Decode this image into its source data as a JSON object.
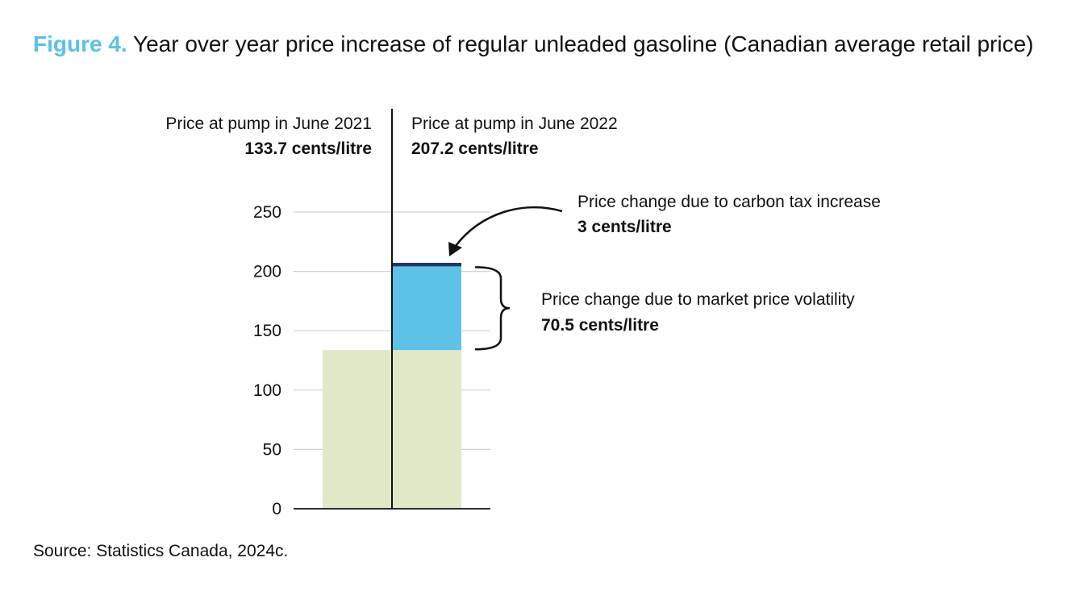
{
  "figure": {
    "label": "Figure 4.",
    "title": "Year over year price increase of regular unleaded gasoline (Canadian average retail price)",
    "source": "Source: Statistics Canada, 2024c."
  },
  "colors": {
    "label_accent": "#5bc0e8",
    "base_fill": "#dfe9c8",
    "market_fill": "#5ec1e8",
    "carbon_fill": "#1f3864",
    "gridline": "#d0d0d0",
    "axis": "#111111"
  },
  "chart_data": {
    "type": "bar",
    "stacked": true,
    "ylim": [
      0,
      275
    ],
    "yticks": [
      0,
      50,
      100,
      150,
      200,
      250
    ],
    "ytick_labels": [
      "0",
      "50",
      "100",
      "150",
      "200",
      "250"
    ],
    "grid": true,
    "xlabel": "",
    "ylabel": "",
    "categories": [
      {
        "title": "Price at pump in June 2021",
        "value_label": "133.7 cents/litre"
      },
      {
        "title": "Price at pump in June 2022",
        "value_label": "207.2 cents/litre"
      }
    ],
    "series": [
      {
        "key": "base",
        "values": [
          133.7,
          133.7
        ],
        "color": "#dfe9c8"
      },
      {
        "key": "market",
        "values": [
          0,
          70.5
        ],
        "color": "#5ec1e8"
      },
      {
        "key": "carbon",
        "values": [
          0,
          3
        ],
        "color": "#1f3864"
      }
    ],
    "annotations": [
      {
        "target": "carbon",
        "title": "Price change due to carbon tax increase",
        "value": "3 cents/litre"
      },
      {
        "target": "market",
        "title": "Price change due to market price volatility",
        "value": "70.5 cents/litre"
      }
    ]
  }
}
